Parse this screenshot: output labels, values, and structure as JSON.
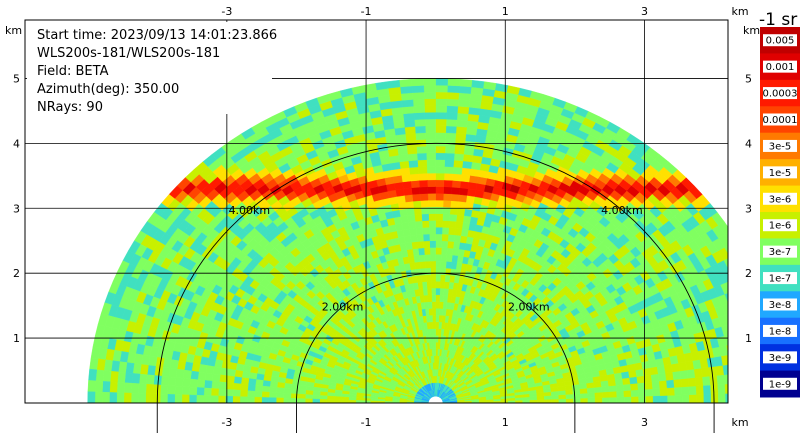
{
  "chart_data": {
    "type": "heatmap",
    "subtype": "radar-ppi-sector",
    "info_lines": [
      "Start time: 2023/09/13 14:01:23.866",
      "WLS200s-181/WLS200s-181",
      "Field: BETA",
      "Azimuth(deg): 350.00",
      "NRays: 90"
    ],
    "x_axis": {
      "unit": "km",
      "range": [
        -5.9,
        4.2
      ],
      "ticks": [
        -3,
        -1,
        1,
        3
      ]
    },
    "y_axis": {
      "unit": "km",
      "range": [
        0,
        5.9
      ],
      "ticks": [
        1,
        2,
        3,
        4,
        5
      ]
    },
    "range_rings": [
      {
        "range_km": 2,
        "label": "2.00km"
      },
      {
        "range_km": 4,
        "label": "4.00km"
      }
    ],
    "max_range_km": 5.0,
    "colorbar": {
      "unit_label": "-1 sr",
      "scale": "log",
      "min": 1e-09,
      "max": 0.005,
      "tick_labels": [
        "0.005",
        "0.001",
        "0.0003",
        "0.0001",
        "3e-5",
        "1e-5",
        "3e-6",
        "1e-6",
        "3e-7",
        "1e-7",
        "3e-8",
        "1e-8",
        "3e-9",
        "1e-9"
      ],
      "colors": [
        "#c00000",
        "#e00000",
        "#ff1a00",
        "#ff4400",
        "#ff7a00",
        "#ffb000",
        "#ffe000",
        "#c8f000",
        "#80ff60",
        "#40e0c0",
        "#20a8ff",
        "#1870ff",
        "#0030e0",
        "#000090"
      ]
    },
    "features": [
      {
        "name": "high-backscatter layer",
        "altitude_km": 3.3,
        "value_range": [
          3e-05,
          0.0003
        ]
      },
      {
        "name": "background",
        "value_range": [
          3e-08,
          1e-06
        ]
      }
    ]
  }
}
